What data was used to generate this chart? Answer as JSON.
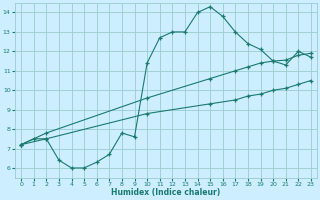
{
  "xlabel": "Humidex (Indice chaleur)",
  "xlim": [
    -0.5,
    23.5
  ],
  "ylim": [
    5.5,
    14.5
  ],
  "xticks": [
    0,
    1,
    2,
    3,
    4,
    5,
    6,
    7,
    8,
    9,
    10,
    11,
    12,
    13,
    14,
    15,
    16,
    17,
    18,
    19,
    20,
    21,
    22,
    23
  ],
  "yticks": [
    6,
    7,
    8,
    9,
    10,
    11,
    12,
    13,
    14
  ],
  "bg_color": "#cceeff",
  "grid_color": "#99cccc",
  "line_color": "#1a7a6e",
  "line1_x": [
    0,
    1,
    2,
    3,
    4,
    5,
    6,
    7,
    8,
    9,
    10,
    11,
    12,
    13,
    14,
    15,
    16,
    17,
    18,
    19,
    20,
    21,
    22,
    23
  ],
  "line1_y": [
    7.2,
    7.5,
    7.5,
    6.4,
    6.0,
    6.0,
    6.3,
    6.7,
    7.8,
    7.6,
    11.4,
    12.7,
    13.0,
    13.0,
    14.0,
    14.3,
    13.8,
    13.0,
    12.4,
    12.1,
    11.5,
    11.3,
    12.0,
    11.7
  ],
  "line2_x": [
    0,
    2,
    10,
    15,
    17,
    18,
    19,
    20,
    21,
    22,
    23
  ],
  "line2_y": [
    7.2,
    7.8,
    9.6,
    10.6,
    11.0,
    11.2,
    11.4,
    11.5,
    11.55,
    11.8,
    11.9
  ],
  "line3_x": [
    0,
    2,
    10,
    15,
    17,
    18,
    19,
    20,
    21,
    22,
    23
  ],
  "line3_y": [
    7.2,
    7.5,
    8.8,
    9.3,
    9.5,
    9.7,
    9.8,
    10.0,
    10.1,
    10.3,
    10.5
  ]
}
